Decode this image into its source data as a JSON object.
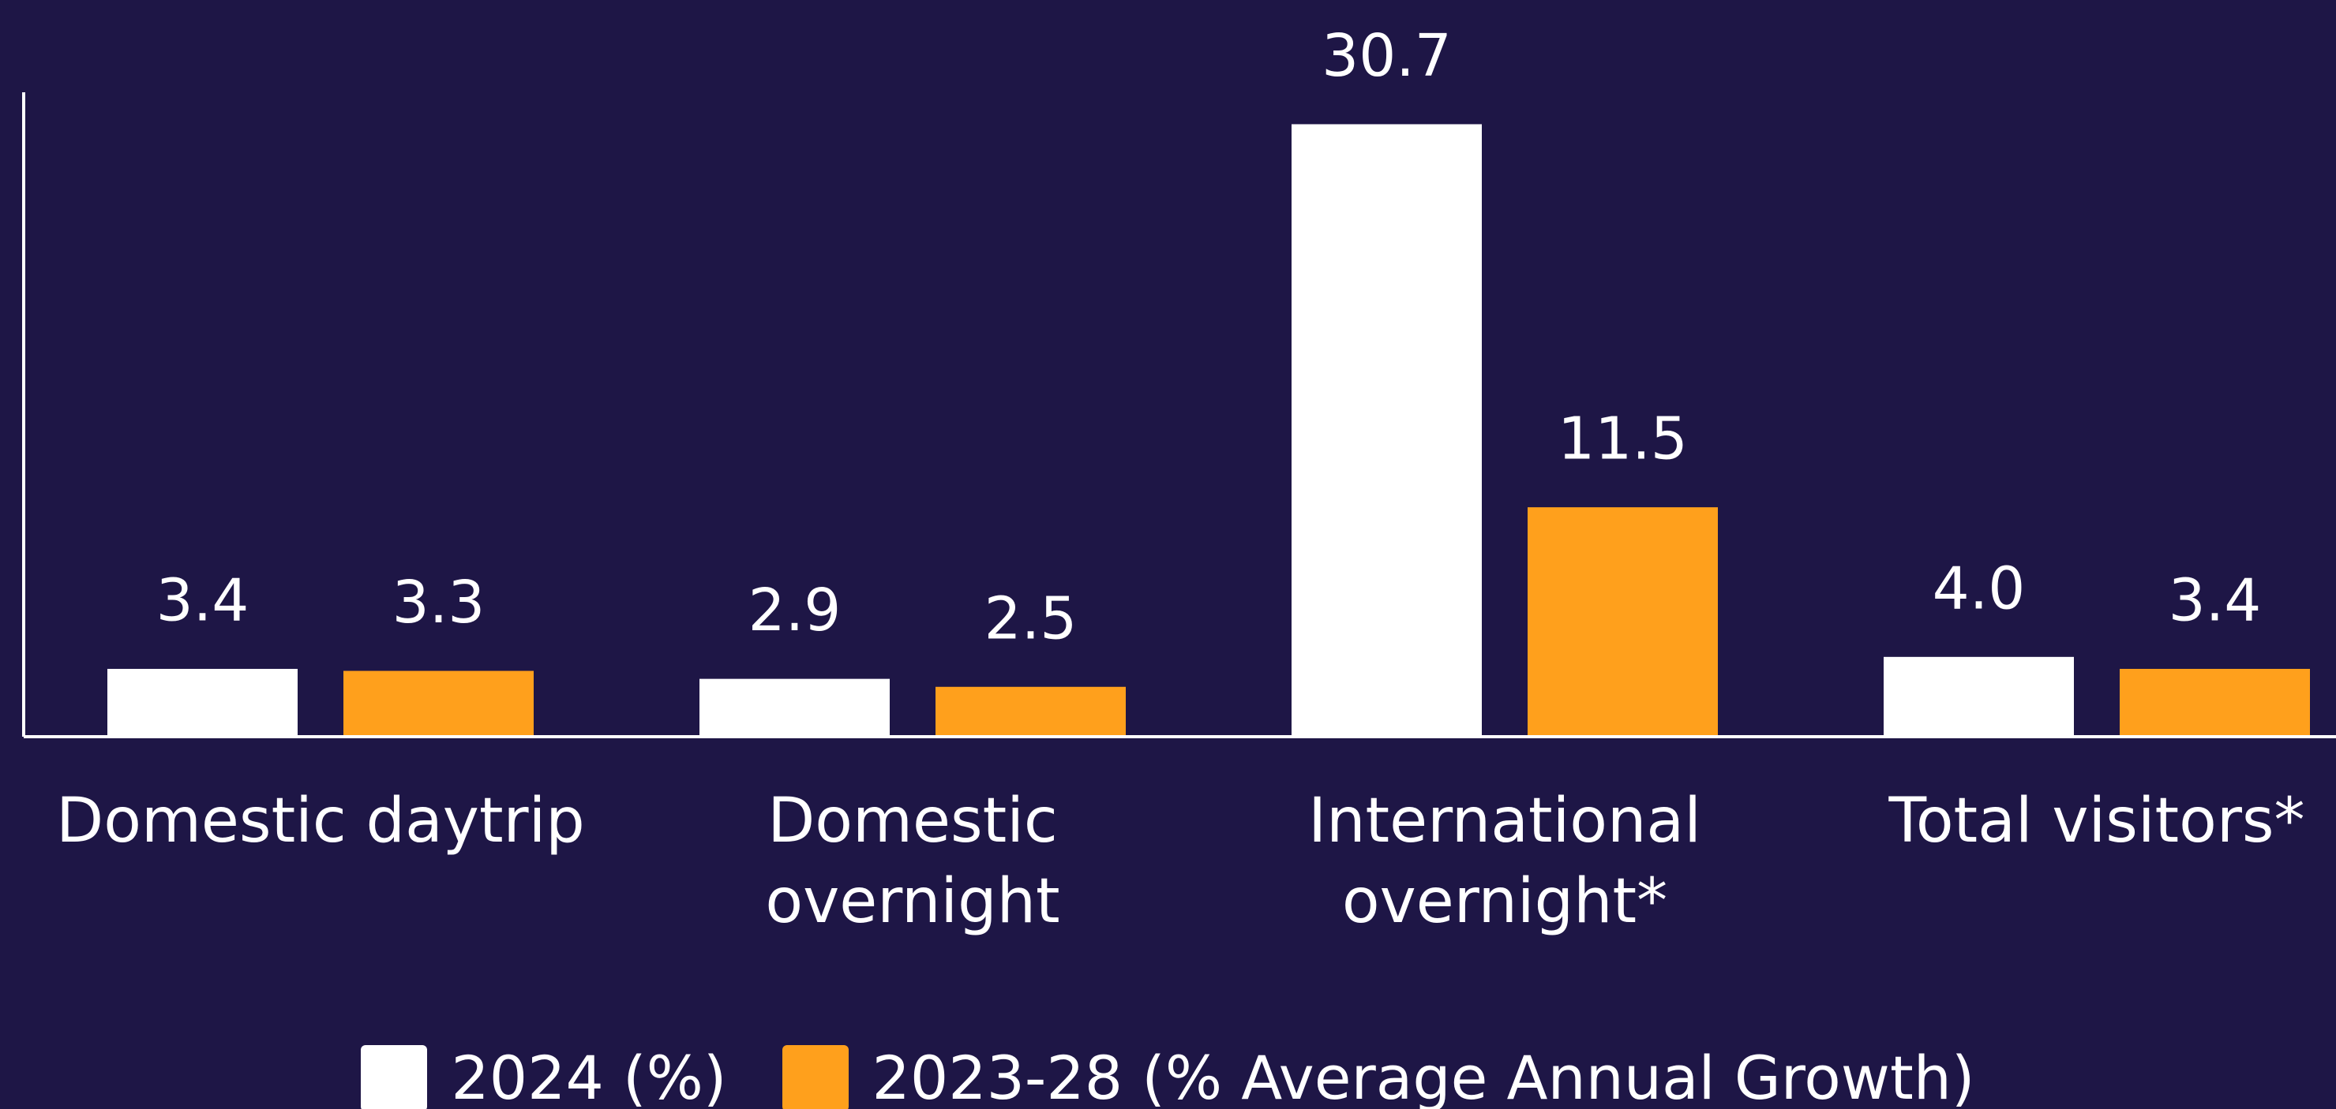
{
  "chart_data": {
    "type": "bar",
    "categories": [
      "Domestic daytrip",
      "Domestic\novernight",
      "International\novernight*",
      "Total visitors*"
    ],
    "series": [
      {
        "name": "2024 (%)",
        "color": "#ffffff",
        "values": [
          3.4,
          2.9,
          30.7,
          4.0
        ],
        "value_labels": [
          "3.4",
          "2.9",
          "30.7",
          "4.0"
        ]
      },
      {
        "name": "2023-28 (% Average Annual Growth)",
        "color": "#ffa01c",
        "values": [
          3.3,
          2.5,
          11.5,
          3.4
        ],
        "value_labels": [
          "3.3",
          "2.5",
          "11.5",
          "3.4"
        ]
      }
    ],
    "ylim": [
      0,
      32.3
    ],
    "background": "#1e1646"
  }
}
